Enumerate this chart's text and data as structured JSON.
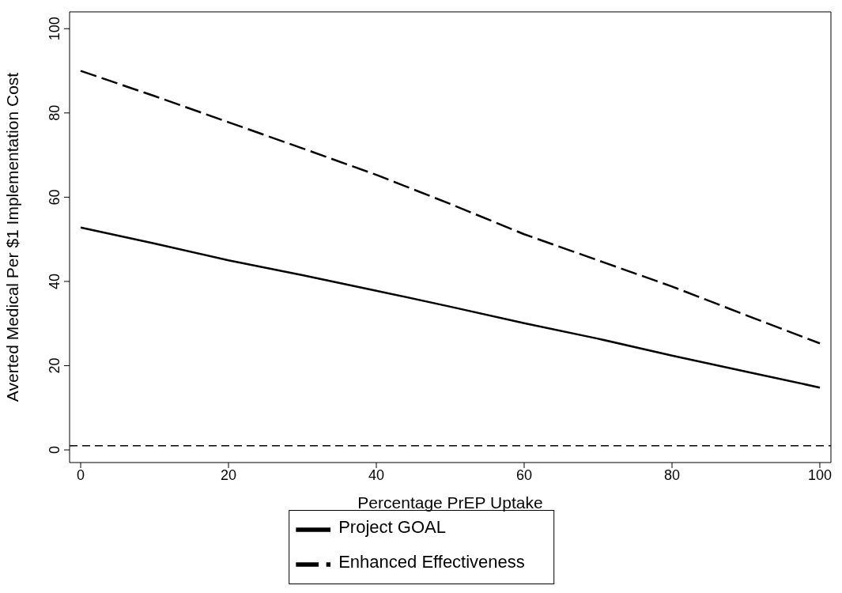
{
  "chart_data": {
    "type": "line",
    "xlabel": "Percentage PrEP Uptake",
    "ylabel": "Averted Medical Per $1 Implementation Cost",
    "x": [
      0,
      10,
      20,
      30,
      40,
      50,
      60,
      70,
      80,
      90,
      100
    ],
    "series": [
      {
        "name": "Project GOAL",
        "color": "#000000",
        "line_style": "solid",
        "values": [
          52.8,
          49,
          45,
          41.5,
          37.8,
          34,
          30.1,
          26.4,
          22.4,
          18.6,
          14.8
        ]
      },
      {
        "name": "Enhanced Effectiveness",
        "color": "#000000",
        "line_style": "dashed",
        "values": [
          90,
          84,
          77.8,
          71.6,
          65.3,
          58.4,
          51.2,
          45,
          38.8,
          32,
          25.3
        ]
      }
    ],
    "xlim": [
      -1.5,
      101.5
    ],
    "xticks": [
      0,
      20,
      40,
      60,
      80,
      100
    ],
    "ylim": [
      -3,
      104
    ],
    "yticks": [
      0,
      20,
      40,
      60,
      80,
      100
    ],
    "ref_lines": [
      {
        "axis": "y",
        "value": 1,
        "color": "#000000",
        "line_style": "dashed"
      }
    ],
    "grid": false,
    "marker": "none",
    "legend": "bottom"
  }
}
